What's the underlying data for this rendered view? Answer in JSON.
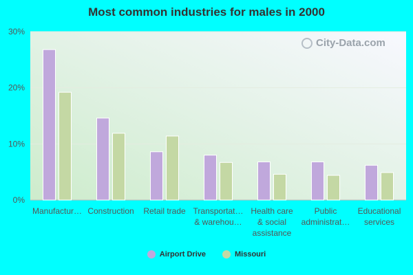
{
  "title": "Most common industries for males in 2000",
  "watermark": "City-Data.com",
  "colors": {
    "series1": "#c0a8dc",
    "series2": "#c4d8a4",
    "background": "#00ffff"
  },
  "chart_data": {
    "type": "bar",
    "title": "Most common industries for males in 2000",
    "categories": [
      [
        "Manufactur…"
      ],
      [
        "Construction"
      ],
      [
        "Retail trade"
      ],
      [
        "Transportat…",
        "& warehou…"
      ],
      [
        "Health care",
        "& social",
        "assistance"
      ],
      [
        "Public",
        "administrat…"
      ],
      [
        "Educational",
        "services"
      ]
    ],
    "series": [
      {
        "name": "Airport Drive",
        "values": [
          26.8,
          14.6,
          8.6,
          8.0,
          6.8,
          6.8,
          6.2
        ]
      },
      {
        "name": "Missouri",
        "values": [
          19.2,
          11.9,
          11.4,
          6.7,
          4.6,
          4.4,
          4.9
        ]
      }
    ],
    "ylim": [
      0,
      30
    ],
    "yticks": [
      "0%",
      "10%",
      "20%",
      "30%"
    ],
    "grid": true,
    "legend_position": "bottom"
  }
}
